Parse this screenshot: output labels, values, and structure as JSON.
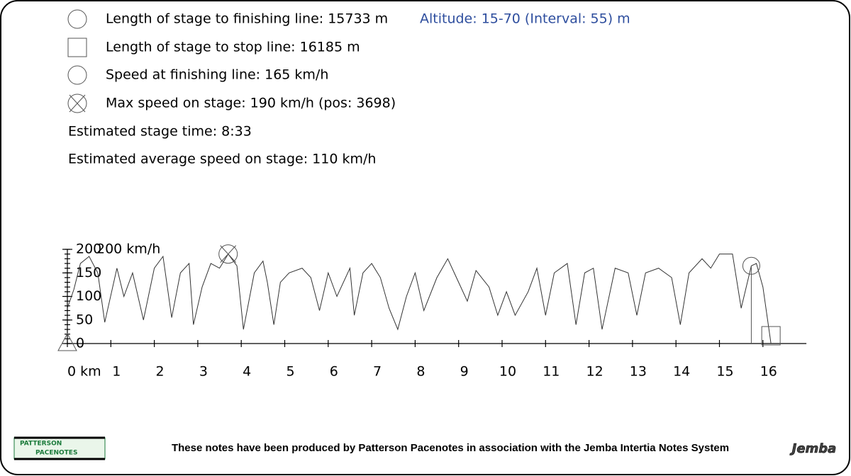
{
  "legend": [
    "Length of stage to finishing line: 15733 m",
    "Length of stage to stop line: 16185 m",
    "Speed at finishing line: 165 km/h",
    "Max speed on stage: 190 km/h (pos: 3698)"
  ],
  "altitude": "Altitude: 15-70 (Interval: 55) m",
  "stage_time": "Estimated stage time: 8:33",
  "average_speed": "Estimated average speed on stage: 110 km/h",
  "footer": {
    "text": "These notes have been produced by Patterson Pacenotes in association with the Jemba Intertia Notes System",
    "logo_left_top": "PATTERSON",
    "logo_left_bottom": "PACENOTES",
    "logo_right": "Jemba"
  },
  "chart_data": {
    "type": "line",
    "y_label": "200 km/h",
    "xlim": [
      0,
      17
    ],
    "ylim": [
      0,
      200
    ],
    "xticks": [
      {
        "value": 0,
        "label": "0 km"
      },
      1,
      2,
      3,
      4,
      5,
      6,
      7,
      8,
      9,
      10,
      11,
      12,
      13,
      14,
      15,
      16
    ],
    "yticks": [
      0,
      50,
      100,
      150,
      200
    ],
    "x": [
      0,
      0.15,
      0.3,
      0.5,
      0.7,
      0.86,
      1.14,
      1.3,
      1.5,
      1.75,
      2.0,
      2.2,
      2.4,
      2.6,
      2.8,
      2.9,
      3.1,
      3.3,
      3.5,
      3.7,
      3.9,
      4.05,
      4.3,
      4.5,
      4.6,
      4.75,
      4.9,
      5.1,
      5.4,
      5.6,
      5.8,
      6.0,
      6.2,
      6.5,
      6.6,
      6.8,
      7.0,
      7.2,
      7.4,
      7.6,
      7.8,
      8.0,
      8.2,
      8.5,
      8.75,
      8.9,
      9.2,
      9.4,
      9.7,
      9.9,
      10.1,
      10.3,
      10.6,
      10.8,
      11.0,
      11.2,
      11.5,
      11.7,
      11.9,
      12.1,
      12.3,
      12.6,
      12.9,
      13.1,
      13.3,
      13.6,
      13.9,
      14.1,
      14.3,
      14.6,
      14.8,
      15.0,
      15.3,
      15.5,
      15.733,
      15.85,
      16.0,
      16.185
    ],
    "series": [
      {
        "name": "Speed",
        "color": "#333333",
        "values": [
          75,
          115,
          170,
          185,
          150,
          45,
          160,
          100,
          150,
          50,
          160,
          185,
          55,
          150,
          170,
          40,
          120,
          170,
          160,
          190,
          165,
          30,
          150,
          175,
          130,
          40,
          130,
          150,
          160,
          140,
          70,
          150,
          100,
          160,
          60,
          150,
          170,
          140,
          75,
          30,
          100,
          150,
          70,
          140,
          180,
          150,
          90,
          155,
          120,
          60,
          110,
          60,
          110,
          160,
          60,
          150,
          170,
          40,
          150,
          160,
          30,
          160,
          150,
          60,
          150,
          160,
          140,
          40,
          150,
          180,
          160,
          190,
          190,
          75,
          165,
          170,
          120,
          0
        ]
      }
    ],
    "markers": {
      "start": {
        "x": 0,
        "y": 0
      },
      "max_speed": {
        "x": 3.698,
        "y": 190
      },
      "finish": {
        "x": 15.733,
        "y": 165
      },
      "stop": {
        "x": 16.185,
        "y": 0
      }
    }
  }
}
